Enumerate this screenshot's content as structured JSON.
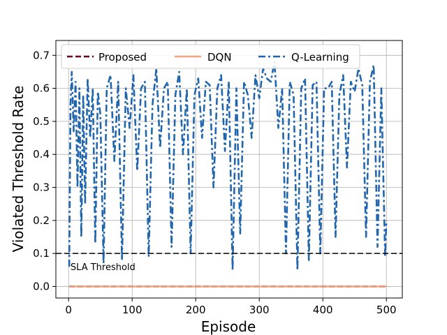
{
  "chart_data": {
    "type": "line",
    "xlabel": "Episode",
    "ylabel": "Violated Threshold Rate",
    "xlim": [
      -20,
      525
    ],
    "ylim": [
      -0.035,
      0.745
    ],
    "xticks": [
      0,
      100,
      200,
      300,
      400,
      500
    ],
    "yticks": [
      0.0,
      0.1,
      0.2,
      0.3,
      0.4,
      0.5,
      0.6,
      0.7
    ],
    "xtick_labels": [
      "0",
      "100",
      "200",
      "300",
      "400",
      "500"
    ],
    "ytick_labels": [
      "0.0",
      "0.1",
      "0.2",
      "0.3",
      "0.4",
      "0.5",
      "0.6",
      "0.7"
    ],
    "grid": true,
    "legend_placement": "top",
    "x_range": [
      1,
      500
    ],
    "series": [
      {
        "name": "Proposed",
        "color": "#67001f",
        "style": "dashed",
        "constant_value": 0.0
      },
      {
        "name": "DQN",
        "color": "#f4a582",
        "style": "solid",
        "constant_value": 0.0
      },
      {
        "name": "Q-Learning",
        "color": "#2166ac",
        "style": "dashdot",
        "typical_range": [
          0.05,
          0.69
        ],
        "mean": 0.47,
        "points_x": [
          1,
          3,
          5,
          8,
          11,
          14,
          17,
          20,
          23,
          26,
          30,
          34,
          38,
          42,
          46,
          50,
          55,
          60,
          66,
          72,
          78,
          84,
          90,
          96,
          102,
          108,
          114,
          120,
          126,
          132,
          138,
          144,
          150,
          156,
          162,
          168,
          174,
          180,
          186,
          192,
          198,
          204,
          210,
          216,
          222,
          228,
          234,
          240,
          246,
          252,
          258,
          264,
          270,
          276,
          282,
          288,
          294,
          300,
          306,
          312,
          318,
          324,
          330,
          336,
          342,
          348,
          354,
          360,
          366,
          372,
          378,
          384,
          390,
          396,
          402,
          408,
          414,
          420,
          426,
          432,
          438,
          444,
          450,
          456,
          462,
          468,
          474,
          480,
          486,
          492,
          498,
          500
        ],
        "points_y": [
          0.06,
          0.55,
          0.65,
          0.47,
          0.62,
          0.3,
          0.6,
          0.15,
          0.58,
          0.25,
          0.63,
          0.45,
          0.6,
          0.13,
          0.59,
          0.52,
          0.07,
          0.6,
          0.64,
          0.38,
          0.62,
          0.08,
          0.6,
          0.48,
          0.64,
          0.35,
          0.6,
          0.62,
          0.09,
          0.55,
          0.66,
          0.42,
          0.6,
          0.62,
          0.12,
          0.58,
          0.65,
          0.4,
          0.6,
          0.1,
          0.58,
          0.63,
          0.45,
          0.62,
          0.61,
          0.3,
          0.6,
          0.64,
          0.41,
          0.62,
          0.05,
          0.6,
          0.16,
          0.62,
          0.58,
          0.45,
          0.64,
          0.57,
          0.66,
          0.63,
          0.62,
          0.68,
          0.48,
          0.6,
          0.1,
          0.62,
          0.58,
          0.05,
          0.6,
          0.63,
          0.08,
          0.61,
          0.62,
          0.1,
          0.6,
          0.6,
          0.62,
          0.15,
          0.58,
          0.64,
          0.36,
          0.62,
          0.59,
          0.66,
          0.61,
          0.15,
          0.62,
          0.67,
          0.12,
          0.6,
          0.09,
          0.2
        ]
      }
    ],
    "threshold": {
      "value": 0.1,
      "label": "SLA Threshold",
      "color": "#000000",
      "style": "dashed"
    }
  }
}
